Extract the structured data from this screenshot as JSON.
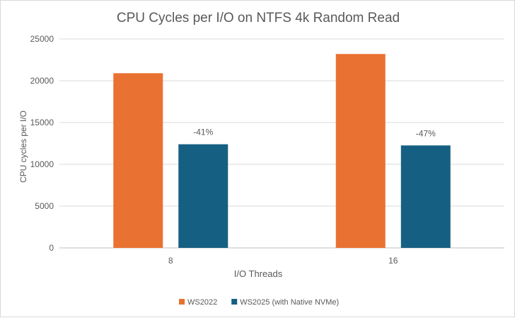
{
  "chart_data": {
    "type": "bar",
    "title": "CPU Cycles per I/O on NTFS 4k Random Read",
    "xlabel": "I/O Threads",
    "ylabel": "CPU cycles per I/O",
    "categories": [
      "8",
      "16"
    ],
    "ylim": [
      0,
      25000
    ],
    "yticks": [
      0,
      5000,
      10000,
      15000,
      20000,
      25000
    ],
    "grid": true,
    "legend_position": "bottom",
    "series": [
      {
        "name": "WS2022",
        "color": "#E97132",
        "values": [
          20900,
          23200
        ],
        "labels": [
          "",
          ""
        ]
      },
      {
        "name": "WS2025 (with Native NVMe)",
        "color": "#156082",
        "values": [
          12400,
          12260
        ],
        "labels": [
          "-41%",
          "-47%"
        ]
      }
    ]
  }
}
